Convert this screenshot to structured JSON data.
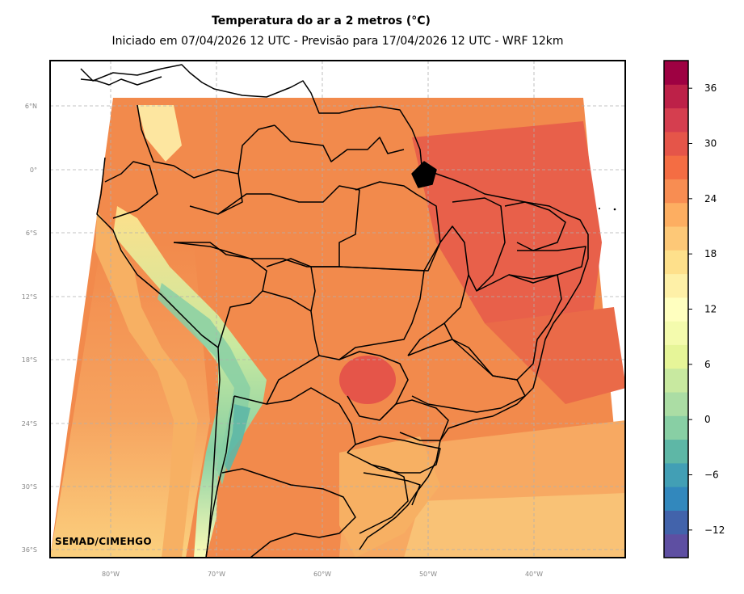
{
  "header": {
    "title": "Temperatura do ar a 2 metros (°C)",
    "subtitle": "Iniciado em 07/04/2026 12 UTC - Previsão para 17/04/2026 12 UTC - WRF 12km"
  },
  "map": {
    "lat_ticks": [
      "6°N",
      "0°",
      "6°S",
      "12°S",
      "18°S",
      "24°S",
      "30°S",
      "36°S"
    ],
    "lon_ticks": [
      "80°W",
      "70°W",
      "60°W",
      "50°W",
      "40°W"
    ],
    "watermark": "SEMAD/CIMEHGO",
    "field_colors": {
      "ocean_south": "#f9d27e",
      "land_main": "#f28a4c",
      "northeast_hot": "#e8604a",
      "andes_cold": "#a7d6a4",
      "andes_warm": "#fdfcb6",
      "south_mild": "#f6b365"
    }
  },
  "colorbar": {
    "ticks": [
      "36",
      "30",
      "24",
      "18",
      "12",
      "6",
      "0",
      "−6",
      "−12"
    ],
    "colors": [
      "#5e4fa2",
      "#4263ab",
      "#3288bd",
      "#429fb5",
      "#5eb7a6",
      "#88cfa4",
      "#abdda4",
      "#c8e9a0",
      "#e6f598",
      "#f4fbad",
      "#ffffbf",
      "#fef0a7",
      "#fee08b",
      "#fdc877",
      "#fdae61",
      "#f88d52",
      "#f46d43",
      "#e55549",
      "#d53e4f",
      "#bd2148",
      "#9e0142"
    ]
  }
}
